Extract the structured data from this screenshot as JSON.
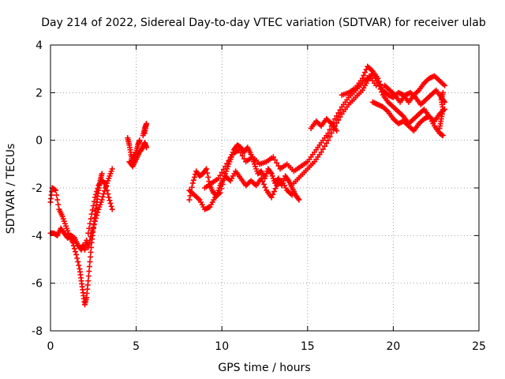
{
  "chart_data": {
    "type": "scatter",
    "title": "Day 214 of 2022, Sidereal Day-to-day VTEC variation (SDTVAR) for receiver ulab",
    "xlabel": "GPS time / hours",
    "ylabel": "SDTVAR / TECUs",
    "xlim": [
      0,
      25
    ],
    "ylim": [
      -8,
      4
    ],
    "xticks": [
      "0",
      "5",
      "10",
      "15",
      "20",
      "25"
    ],
    "yticks": [
      "-8",
      "-6",
      "-4",
      "-2",
      "0",
      "2",
      "4"
    ],
    "grid": true,
    "legend": "none",
    "marker": "plus",
    "color": "#ff0000",
    "series": [
      {
        "tracks": [
          [
            [
              0.0,
              -2.6
            ],
            [
              0.1,
              -2.0
            ],
            [
              0.3,
              -2.1
            ],
            [
              0.5,
              -2.9
            ],
            [
              0.7,
              -3.2
            ],
            [
              0.9,
              -3.6
            ],
            [
              1.1,
              -4.0
            ],
            [
              1.3,
              -4.3
            ],
            [
              1.5,
              -4.8
            ],
            [
              1.7,
              -5.4
            ],
            [
              1.8,
              -5.9
            ],
            [
              1.9,
              -6.4
            ],
            [
              2.0,
              -6.9
            ],
            [
              2.1,
              -6.6
            ],
            [
              2.2,
              -5.9
            ],
            [
              2.3,
              -5.1
            ],
            [
              2.4,
              -4.3
            ],
            [
              2.5,
              -3.7
            ],
            [
              2.6,
              -3.1
            ],
            [
              2.7,
              -2.6
            ],
            [
              2.8,
              -2.1
            ],
            [
              2.9,
              -1.7
            ],
            [
              3.0,
              -1.4
            ]
          ],
          [
            [
              0.0,
              -3.9
            ],
            [
              0.2,
              -3.9
            ],
            [
              0.4,
              -4.0
            ],
            [
              0.6,
              -3.7
            ],
            [
              0.8,
              -3.9
            ],
            [
              1.0,
              -4.1
            ],
            [
              1.2,
              -4.0
            ],
            [
              1.4,
              -4.1
            ],
            [
              1.6,
              -4.4
            ],
            [
              1.8,
              -4.6
            ],
            [
              1.9,
              -4.4
            ],
            [
              2.0,
              -4.6
            ],
            [
              2.1,
              -4.2
            ],
            [
              2.2,
              -4.5
            ],
            [
              2.4,
              -3.9
            ],
            [
              2.6,
              -3.4
            ],
            [
              2.8,
              -2.9
            ],
            [
              3.0,
              -2.5
            ],
            [
              3.2,
              -2.0
            ],
            [
              3.4,
              -1.6
            ],
            [
              3.6,
              -1.2
            ]
          ],
          [
            [
              2.2,
              -3.9
            ],
            [
              2.4,
              -3.1
            ],
            [
              2.6,
              -2.4
            ],
            [
              2.8,
              -1.9
            ],
            [
              3.0,
              -1.7
            ],
            [
              3.2,
              -1.8
            ],
            [
              3.4,
              -2.4
            ],
            [
              3.6,
              -2.9
            ]
          ],
          [
            [
              4.5,
              0.1
            ],
            [
              4.6,
              -0.2
            ],
            [
              4.7,
              -0.6
            ],
            [
              4.8,
              -0.9
            ],
            [
              4.9,
              -0.7
            ],
            [
              5.0,
              -0.5
            ],
            [
              5.1,
              -0.2
            ],
            [
              5.2,
              0.0
            ]
          ],
          [
            [
              4.6,
              -0.9
            ],
            [
              4.8,
              -1.1
            ],
            [
              5.0,
              -0.8
            ],
            [
              5.2,
              -0.5
            ],
            [
              5.4,
              -0.3
            ],
            [
              5.5,
              -0.1
            ],
            [
              5.6,
              -0.3
            ]
          ],
          [
            [
              5.4,
              0.2
            ],
            [
              5.5,
              0.5
            ],
            [
              5.6,
              0.7
            ],
            [
              5.5,
              0.3
            ]
          ],
          [
            [
              8.1,
              -2.5
            ],
            [
              8.3,
              -1.8
            ],
            [
              8.5,
              -1.3
            ],
            [
              8.7,
              -1.5
            ],
            [
              8.9,
              -1.4
            ],
            [
              9.1,
              -1.2
            ],
            [
              9.3,
              -1.9
            ],
            [
              9.5,
              -2.2
            ],
            [
              9.7,
              -2.3
            ],
            [
              9.9,
              -1.9
            ],
            [
              10.1,
              -1.6
            ],
            [
              10.3,
              -1.2
            ],
            [
              10.5,
              -0.8
            ],
            [
              10.7,
              -0.4
            ],
            [
              10.9,
              -0.2
            ],
            [
              11.1,
              -0.3
            ],
            [
              11.3,
              -0.5
            ],
            [
              11.5,
              -0.3
            ],
            [
              11.7,
              -0.6
            ],
            [
              11.9,
              -1.0
            ],
            [
              12.1,
              -1.4
            ],
            [
              12.3,
              -1.3
            ],
            [
              12.5,
              -1.6
            ],
            [
              12.7,
              -1.2
            ],
            [
              12.9,
              -1.4
            ],
            [
              13.1,
              -1.8
            ],
            [
              13.3,
              -1.6
            ],
            [
              13.5,
              -1.9
            ],
            [
              13.7,
              -1.5
            ],
            [
              13.9,
              -1.7
            ],
            [
              14.1,
              -2.0
            ],
            [
              14.3,
              -2.3
            ],
            [
              14.5,
              -2.5
            ]
          ],
          [
            [
              8.1,
              -2.1
            ],
            [
              8.4,
              -2.3
            ],
            [
              8.7,
              -2.5
            ],
            [
              9.0,
              -2.9
            ],
            [
              9.3,
              -2.8
            ],
            [
              9.6,
              -2.4
            ],
            [
              9.9,
              -2.2
            ],
            [
              10.2,
              -1.5
            ],
            [
              10.5,
              -1.7
            ],
            [
              10.8,
              -1.3
            ],
            [
              11.1,
              -1.6
            ],
            [
              11.4,
              -1.9
            ],
            [
              11.7,
              -1.7
            ],
            [
              12.0,
              -1.9
            ],
            [
              12.3,
              -1.6
            ],
            [
              12.6,
              -2.1
            ],
            [
              12.9,
              -2.4
            ],
            [
              13.2,
              -1.9
            ],
            [
              13.5,
              -1.7
            ],
            [
              13.8,
              -2.1
            ],
            [
              14.1,
              -2.3
            ]
          ],
          [
            [
              9.0,
              -2.0
            ],
            [
              9.4,
              -1.8
            ],
            [
              9.8,
              -1.6
            ],
            [
              10.2,
              -1.1
            ],
            [
              10.6,
              -0.6
            ],
            [
              11.0,
              -0.4
            ],
            [
              11.4,
              -0.9
            ],
            [
              11.8,
              -0.7
            ],
            [
              12.2,
              -1.0
            ],
            [
              12.6,
              -0.9
            ],
            [
              13.0,
              -0.7
            ],
            [
              13.4,
              -1.2
            ],
            [
              13.8,
              -1.0
            ],
            [
              14.2,
              -1.3
            ],
            [
              14.6,
              -1.1
            ],
            [
              15.0,
              -0.9
            ],
            [
              15.4,
              -0.5
            ],
            [
              15.8,
              -0.1
            ],
            [
              16.2,
              0.3
            ],
            [
              16.6,
              0.9
            ],
            [
              17.0,
              1.4
            ],
            [
              17.4,
              1.8
            ],
            [
              17.8,
              2.1
            ],
            [
              18.2,
              2.4
            ],
            [
              18.6,
              2.7
            ],
            [
              19.0,
              2.3
            ]
          ],
          [
            [
              14.2,
              -1.8
            ],
            [
              14.6,
              -1.5
            ],
            [
              15.0,
              -1.2
            ],
            [
              15.4,
              -0.9
            ],
            [
              15.8,
              -0.5
            ],
            [
              16.2,
              0.0
            ],
            [
              16.6,
              0.6
            ],
            [
              17.0,
              1.1
            ],
            [
              17.4,
              1.5
            ],
            [
              17.8,
              1.8
            ],
            [
              18.2,
              2.1
            ],
            [
              18.5,
              2.5
            ],
            [
              18.8,
              2.8
            ],
            [
              19.1,
              2.4
            ],
            [
              19.4,
              1.9
            ],
            [
              19.7,
              1.6
            ],
            [
              20.0,
              1.4
            ],
            [
              20.3,
              1.2
            ],
            [
              20.6,
              1.0
            ],
            [
              20.9,
              0.7
            ],
            [
              21.2,
              0.9
            ],
            [
              21.5,
              1.1
            ],
            [
              21.8,
              1.3
            ],
            [
              22.1,
              1.0
            ],
            [
              22.4,
              0.8
            ],
            [
              22.7,
              1.1
            ],
            [
              23.0,
              1.3
            ]
          ],
          [
            [
              15.2,
              0.5
            ],
            [
              15.5,
              0.8
            ],
            [
              15.8,
              0.6
            ],
            [
              16.1,
              0.9
            ],
            [
              16.4,
              0.7
            ],
            [
              16.7,
              0.4
            ]
          ],
          [
            [
              17.0,
              1.9
            ],
            [
              17.4,
              2.0
            ],
            [
              17.8,
              2.2
            ],
            [
              18.2,
              2.6
            ],
            [
              18.5,
              3.1
            ],
            [
              18.8,
              2.9
            ],
            [
              19.1,
              2.6
            ],
            [
              19.4,
              2.1
            ],
            [
              19.7,
              1.9
            ],
            [
              20.0,
              1.8
            ],
            [
              20.3,
              2.0
            ],
            [
              20.6,
              1.9
            ],
            [
              20.9,
              1.6
            ],
            [
              21.2,
              1.9
            ],
            [
              21.5,
              2.1
            ],
            [
              21.8,
              2.4
            ],
            [
              22.1,
              2.6
            ],
            [
              22.4,
              2.7
            ],
            [
              22.7,
              2.5
            ],
            [
              23.0,
              2.3
            ]
          ],
          [
            [
              18.8,
              1.6
            ],
            [
              19.1,
              1.5
            ],
            [
              19.4,
              1.4
            ],
            [
              19.7,
              1.2
            ],
            [
              20.0,
              0.9
            ],
            [
              20.3,
              0.7
            ],
            [
              20.6,
              0.8
            ],
            [
              20.9,
              0.6
            ],
            [
              21.2,
              0.4
            ],
            [
              21.5,
              0.7
            ],
            [
              21.8,
              0.9
            ],
            [
              22.1,
              1.0
            ],
            [
              22.4,
              0.6
            ],
            [
              22.7,
              0.3
            ],
            [
              22.9,
              0.2
            ]
          ],
          [
            [
              19.5,
              2.3
            ],
            [
              19.8,
              2.1
            ],
            [
              20.1,
              1.9
            ],
            [
              20.4,
              1.6
            ],
            [
              20.7,
              1.9
            ],
            [
              21.0,
              2.0
            ],
            [
              21.3,
              1.8
            ],
            [
              21.6,
              1.5
            ],
            [
              21.9,
              1.7
            ],
            [
              22.2,
              1.9
            ],
            [
              22.5,
              2.1
            ],
            [
              22.8,
              1.8
            ],
            [
              23.0,
              1.6
            ]
          ],
          [
            [
              22.7,
              0.5
            ],
            [
              22.8,
              0.9
            ],
            [
              22.9,
              1.3
            ],
            [
              22.8,
              1.7
            ],
            [
              22.9,
              2.0
            ]
          ]
        ]
      }
    ]
  }
}
